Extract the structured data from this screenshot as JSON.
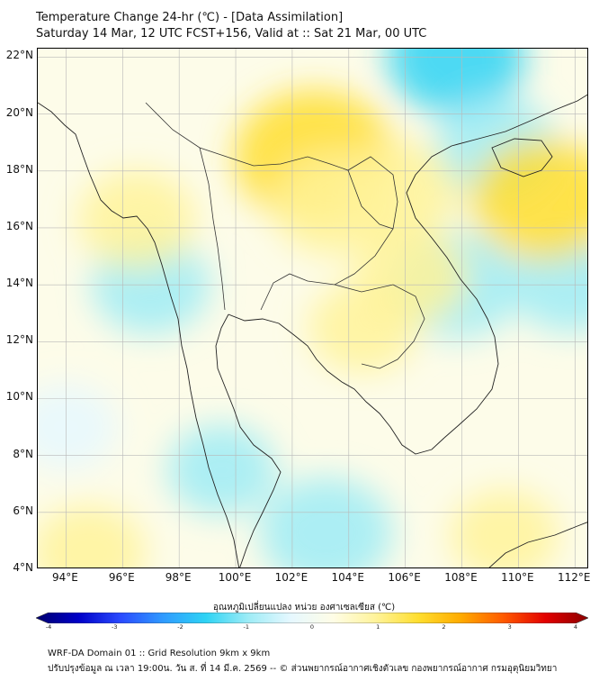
{
  "header": {
    "title": "Temperature Change 24-hr (℃) - [Data Assimilation]",
    "subtitle": "Saturday 14 Mar, 12 UTC FCST+156, Valid at :: Sat 21 Mar, 00 UTC"
  },
  "map": {
    "lat_labels": [
      "22°N",
      "20°N",
      "18°N",
      "16°N",
      "14°N",
      "12°N",
      "10°N",
      "8°N",
      "6°N",
      "4°N"
    ],
    "lon_labels": [
      "94°E",
      "96°E",
      "98°E",
      "100°E",
      "102°E",
      "104°E",
      "106°E",
      "108°E",
      "110°E",
      "112°E"
    ],
    "lat_range": [
      4,
      22.3
    ],
    "lon_range": [
      93,
      112.5
    ],
    "warm_areas": [
      {
        "lon": 102.8,
        "lat": 18.5,
        "level": 1.8
      },
      {
        "lon": 103.5,
        "lat": 16.8,
        "level": 1.0
      },
      {
        "lon": 110.9,
        "lat": 17.0,
        "level": 1.5
      },
      {
        "lon": 105.8,
        "lat": 17.3,
        "level": 0.9
      },
      {
        "lon": 106.2,
        "lat": 14.3,
        "level": 0.8
      },
      {
        "lon": 104.5,
        "lat": 12.5,
        "level": 0.7
      },
      {
        "lon": 96.5,
        "lat": 16.3,
        "level": 0.9
      },
      {
        "lon": 94.8,
        "lat": 4.6,
        "level": 0.8
      },
      {
        "lon": 109.5,
        "lat": 5.2,
        "level": 0.7
      }
    ],
    "cool_areas": [
      {
        "lon": 107.8,
        "lat": 22.0,
        "level": -1.3
      },
      {
        "lon": 109.2,
        "lat": 18.8,
        "level": -1.0
      },
      {
        "lon": 107.8,
        "lat": 14.0,
        "level": -1.1
      },
      {
        "lon": 103.2,
        "lat": 5.3,
        "level": -1.2
      },
      {
        "lon": 97.0,
        "lat": 14.0,
        "level": -0.9
      },
      {
        "lon": 111.8,
        "lat": 14.0,
        "level": -0.8
      },
      {
        "lon": 99.5,
        "lat": 7.5,
        "level": -0.7
      },
      {
        "lon": 94.0,
        "lat": 9.0,
        "level": -0.6
      }
    ]
  },
  "colorbar": {
    "label": "อุณหภูมิเปลี่ยนแปลง หน่วย องศาเซลเซียส (℃)",
    "ticks": [
      "-4",
      "-3",
      "-2",
      "-1",
      "0",
      "1",
      "2",
      "3",
      "4"
    ],
    "range": [
      -4,
      4
    ],
    "colors": [
      "#00006e",
      "#0000c8",
      "#2a4bff",
      "#2f9bff",
      "#2ed3f4",
      "#9eecf6",
      "#e6f8ff",
      "#fffde6",
      "#fff39a",
      "#ffde2e",
      "#ffab00",
      "#ff5a00",
      "#e20000",
      "#8b0000"
    ]
  },
  "footer": {
    "line1": "WRF-DA Domain 01 :: Grid Resolution 9km x 9km",
    "line2": "ปรับปรุงข้อมูล ณ เวลา 19:00น. วัน ส. ที่ 14 มี.ค. 2569 -- © ส่วนพยากรณ์อากาศเชิงตัวเลข กองพยากรณ์อากาศ กรมอุตุนิยมวิทยา"
  }
}
